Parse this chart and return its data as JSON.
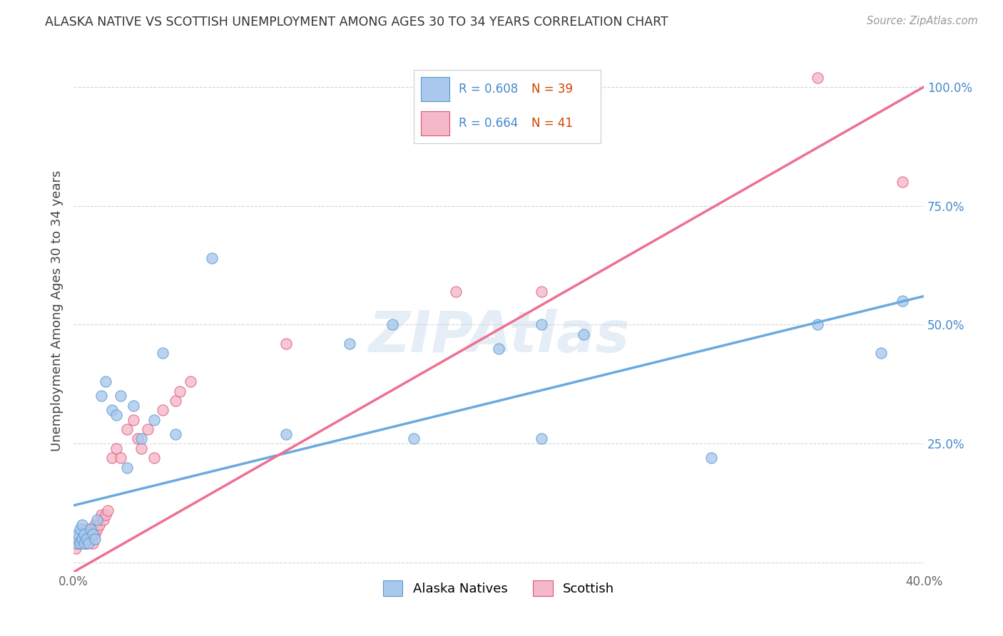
{
  "title": "ALASKA NATIVE VS SCOTTISH UNEMPLOYMENT AMONG AGES 30 TO 34 YEARS CORRELATION CHART",
  "source": "Source: ZipAtlas.com",
  "ylabel": "Unemployment Among Ages 30 to 34 years",
  "xlim": [
    0.0,
    0.4
  ],
  "ylim": [
    -0.02,
    1.08
  ],
  "blue_color": "#aac8ee",
  "pink_color": "#f5b8c8",
  "blue_line_color": "#6aaae0",
  "pink_line_color": "#ee7090",
  "blue_edge_color": "#5599cc",
  "pink_edge_color": "#dd5577",
  "R_blue": 0.608,
  "N_blue": 39,
  "R_pink": 0.664,
  "N_pink": 41,
  "legend_color": "#4488cc",
  "N_color": "#cc4400",
  "watermark": "ZIPAtlas",
  "blue_scatter_x": [
    0.001,
    0.002,
    0.002,
    0.003,
    0.003,
    0.004,
    0.004,
    0.005,
    0.005,
    0.006,
    0.007,
    0.008,
    0.009,
    0.01,
    0.011,
    0.013,
    0.015,
    0.018,
    0.02,
    0.022,
    0.025,
    0.028,
    0.032,
    0.038,
    0.042,
    0.048,
    0.065,
    0.1,
    0.13,
    0.15,
    0.16,
    0.2,
    0.22,
    0.24,
    0.3,
    0.35,
    0.38,
    0.39,
    0.22
  ],
  "blue_scatter_y": [
    0.04,
    0.05,
    0.06,
    0.04,
    0.07,
    0.05,
    0.08,
    0.04,
    0.06,
    0.05,
    0.04,
    0.07,
    0.06,
    0.05,
    0.09,
    0.35,
    0.38,
    0.32,
    0.31,
    0.35,
    0.2,
    0.33,
    0.26,
    0.3,
    0.44,
    0.27,
    0.64,
    0.27,
    0.46,
    0.5,
    0.26,
    0.45,
    0.5,
    0.48,
    0.22,
    0.5,
    0.44,
    0.55,
    0.26
  ],
  "pink_scatter_x": [
    0.001,
    0.002,
    0.003,
    0.003,
    0.004,
    0.004,
    0.005,
    0.005,
    0.006,
    0.006,
    0.007,
    0.007,
    0.008,
    0.008,
    0.009,
    0.01,
    0.01,
    0.011,
    0.012,
    0.013,
    0.014,
    0.015,
    0.016,
    0.018,
    0.02,
    0.022,
    0.025,
    0.028,
    0.03,
    0.032,
    0.035,
    0.038,
    0.042,
    0.048,
    0.05,
    0.055,
    0.1,
    0.18,
    0.22,
    0.35,
    0.39
  ],
  "pink_scatter_y": [
    0.03,
    0.04,
    0.04,
    0.06,
    0.05,
    0.07,
    0.04,
    0.06,
    0.04,
    0.05,
    0.05,
    0.07,
    0.05,
    0.06,
    0.04,
    0.06,
    0.08,
    0.07,
    0.08,
    0.1,
    0.09,
    0.1,
    0.11,
    0.22,
    0.24,
    0.22,
    0.28,
    0.3,
    0.26,
    0.24,
    0.28,
    0.22,
    0.32,
    0.34,
    0.36,
    0.38,
    0.46,
    0.57,
    0.57,
    1.02,
    0.8
  ],
  "background_color": "#ffffff",
  "grid_color": "#cccccc",
  "blue_line_x0": 0.0,
  "blue_line_y0": 0.12,
  "blue_line_x1": 0.4,
  "blue_line_y1": 0.56,
  "pink_line_x0": 0.0,
  "pink_line_y0": -0.02,
  "pink_line_x1": 0.4,
  "pink_line_y1": 1.0
}
